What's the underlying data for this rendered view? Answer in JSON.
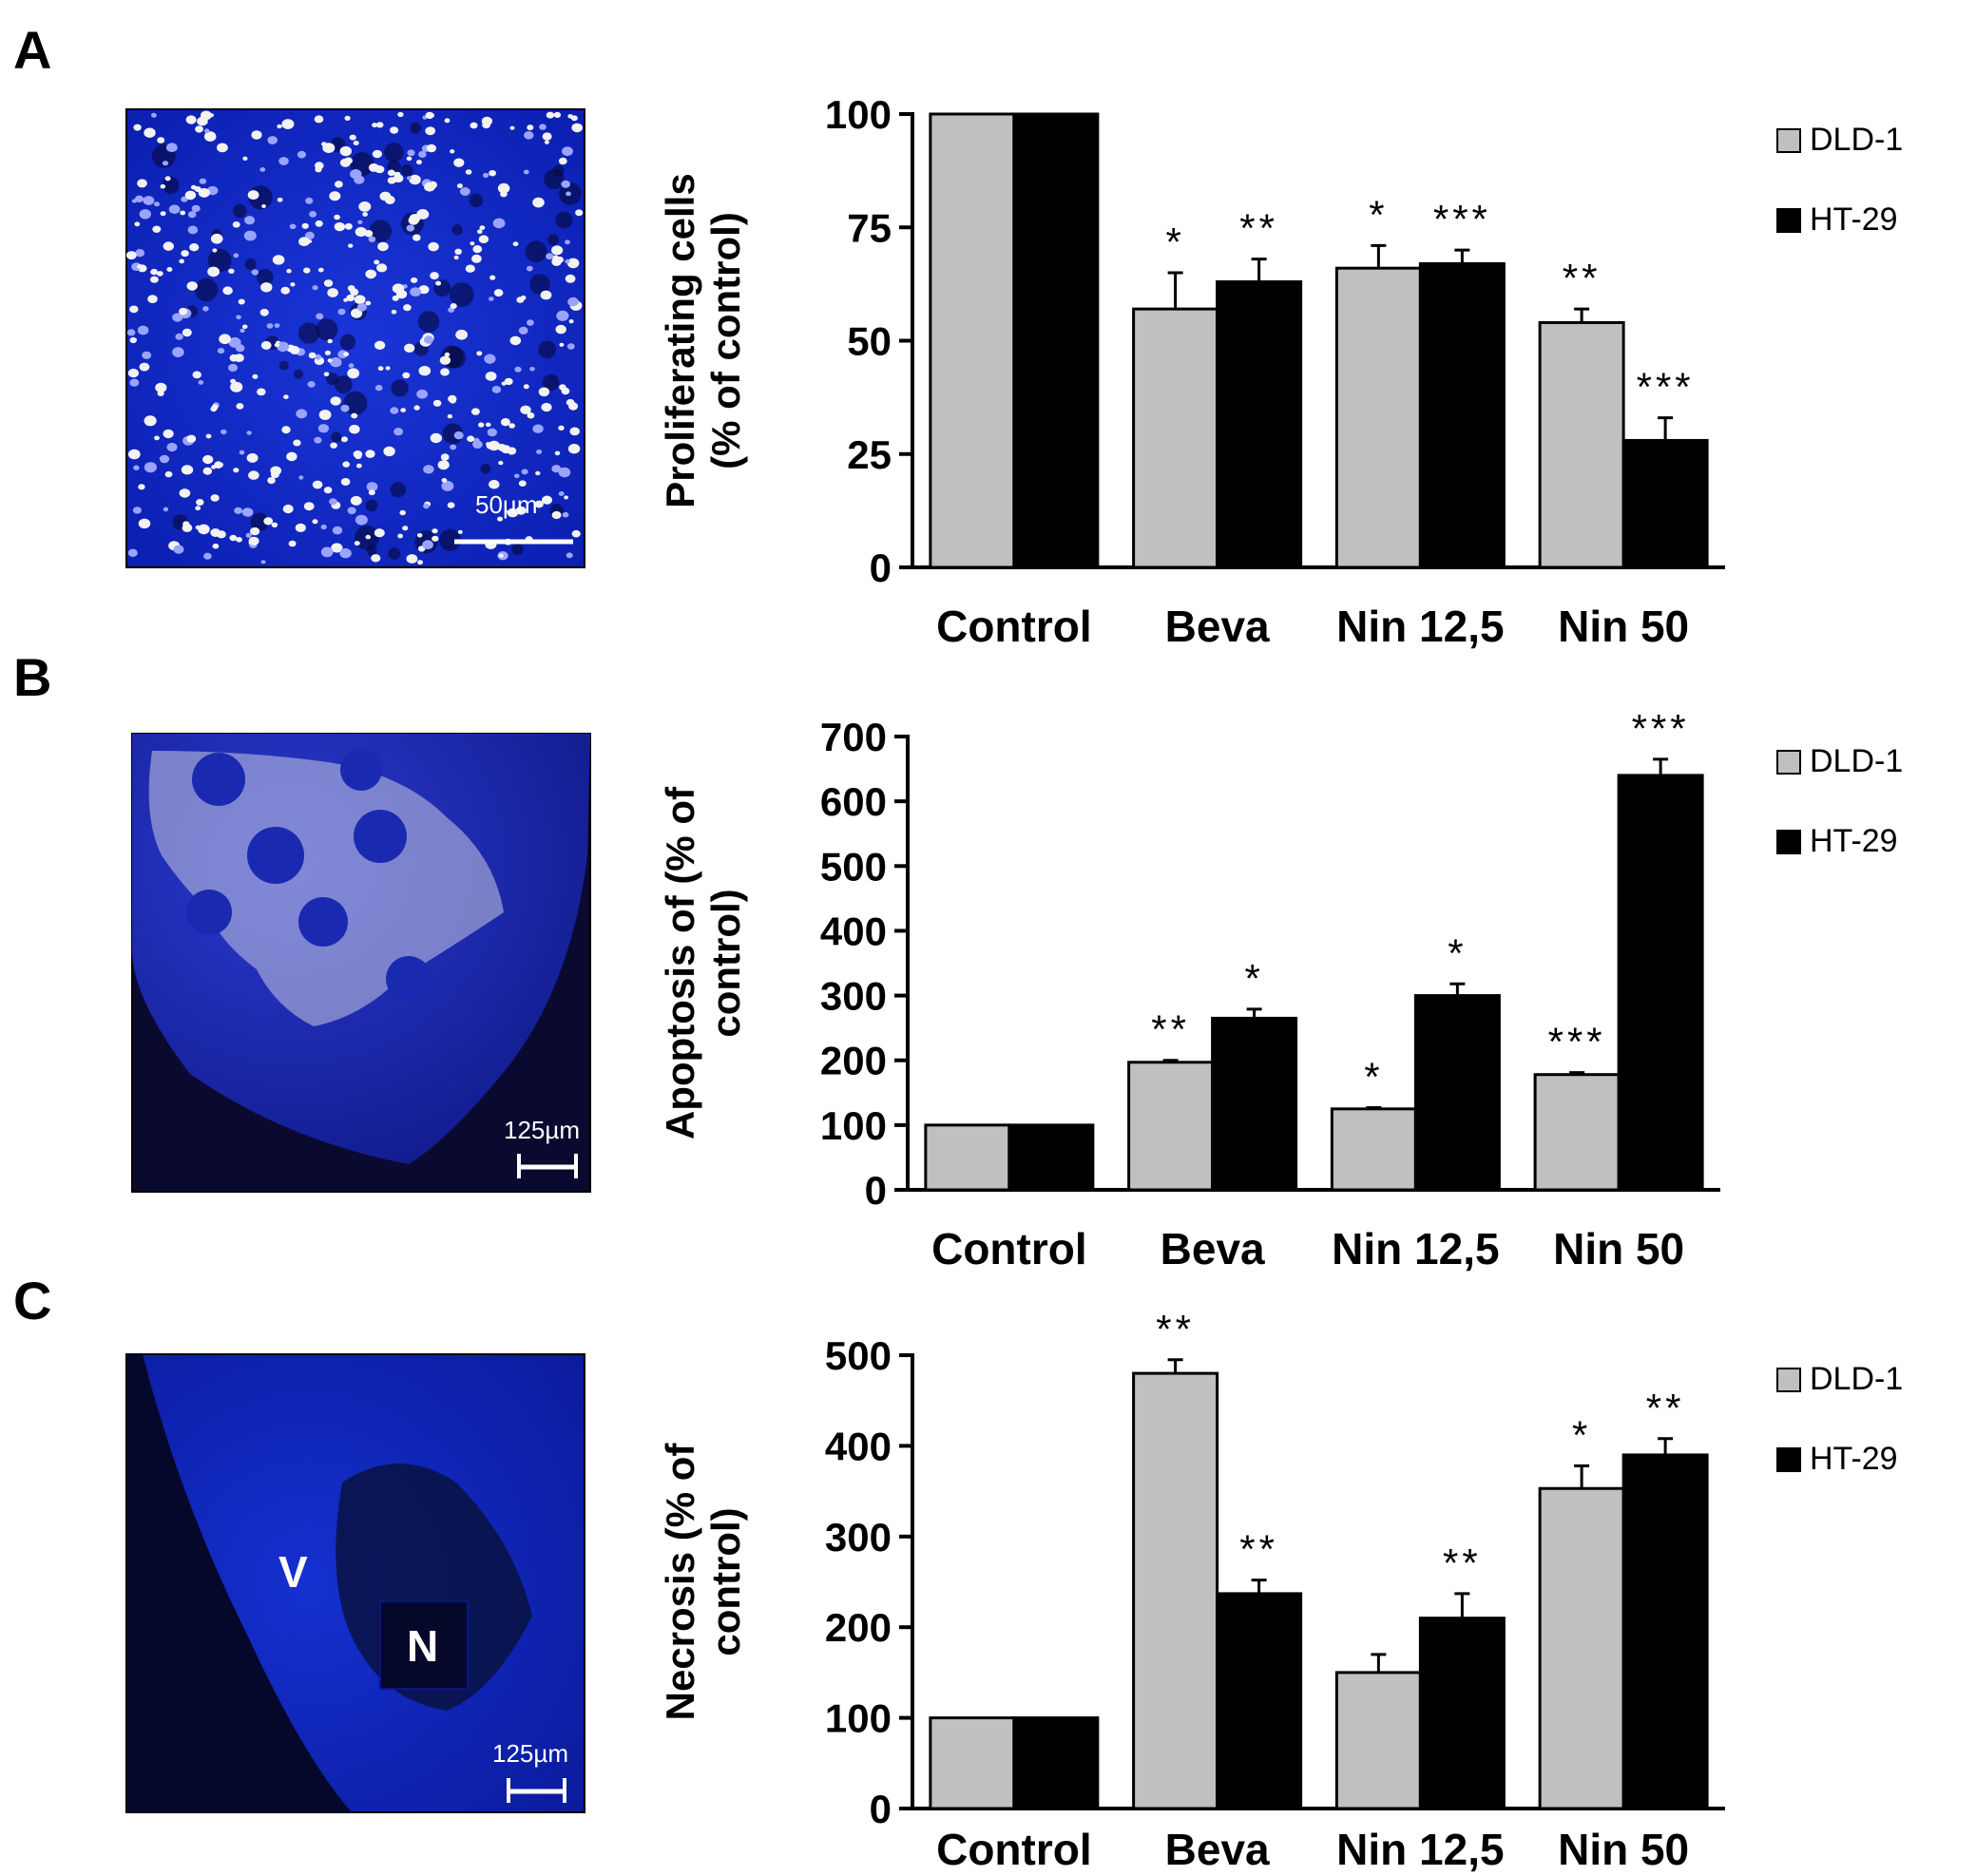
{
  "panels": [
    {
      "letter": "A",
      "scale_bar": "50µm",
      "micro_labels": [],
      "chart_data": {
        "type": "bar",
        "categories": [
          "Control",
          "Beva",
          "Nin 12,5",
          "Nin 50"
        ],
        "series": [
          {
            "name": "DLD-1",
            "color": "#c0c0c0",
            "values": [
              100,
              57,
              66,
              54
            ],
            "errors": [
              0,
              8,
              5,
              3
            ],
            "stars": [
              "",
              "*",
              "*",
              "**"
            ]
          },
          {
            "name": "HT-29",
            "color": "#000000",
            "values": [
              100,
              63,
              67,
              28
            ],
            "errors": [
              0,
              5,
              3,
              5
            ],
            "stars": [
              "",
              "**",
              "***",
              "***"
            ]
          }
        ],
        "ylabel_lines": [
          "Proliferating cells",
          "(% of control)"
        ],
        "ylim": [
          0,
          100
        ],
        "yticks": [
          0,
          25,
          50,
          75,
          100
        ],
        "legend_position": "right"
      }
    },
    {
      "letter": "B",
      "scale_bar": "125µm",
      "micro_labels": [],
      "chart_data": {
        "type": "bar",
        "categories": [
          "Control",
          "Beva",
          "Nin 12,5",
          "Nin 50"
        ],
        "series": [
          {
            "name": "DLD-1",
            "color": "#c0c0c0",
            "values": [
              100,
              197,
              125,
              178
            ],
            "errors": [
              0,
              3,
              2,
              3
            ],
            "stars": [
              "",
              "**",
              "*",
              "***"
            ]
          },
          {
            "name": "HT-29",
            "color": "#000000",
            "values": [
              100,
              265,
              300,
              640
            ],
            "errors": [
              0,
              14,
              18,
              25
            ],
            "stars": [
              "",
              "*",
              "*",
              "***"
            ]
          }
        ],
        "ylabel_lines": [
          "Apoptosis of (% of",
          "control)"
        ],
        "ylim": [
          0,
          700
        ],
        "yticks": [
          0,
          100,
          200,
          300,
          400,
          500,
          600,
          700
        ],
        "legend_position": "right"
      }
    },
    {
      "letter": "C",
      "scale_bar": "125µm",
      "micro_labels": [
        "V",
        "N"
      ],
      "chart_data": {
        "type": "bar",
        "categories": [
          "Control",
          "Beva",
          "Nin 12,5",
          "Nin 50"
        ],
        "series": [
          {
            "name": "DLD-1",
            "color": "#c0c0c0",
            "values": [
              100,
              480,
              150,
              353
            ],
            "errors": [
              0,
              15,
              20,
              25
            ],
            "stars": [
              "",
              "**",
              "",
              "*"
            ]
          },
          {
            "name": "HT-29",
            "color": "#000000",
            "values": [
              100,
              237,
              210,
              390
            ],
            "errors": [
              0,
              15,
              27,
              18
            ],
            "stars": [
              "",
              "**",
              "**",
              "**"
            ]
          }
        ],
        "ylabel_lines": [
          "Necrosis (% of",
          "control)"
        ],
        "ylim": [
          0,
          500
        ],
        "yticks": [
          0,
          100,
          200,
          300,
          400,
          500
        ],
        "legend_position": "right"
      }
    }
  ]
}
